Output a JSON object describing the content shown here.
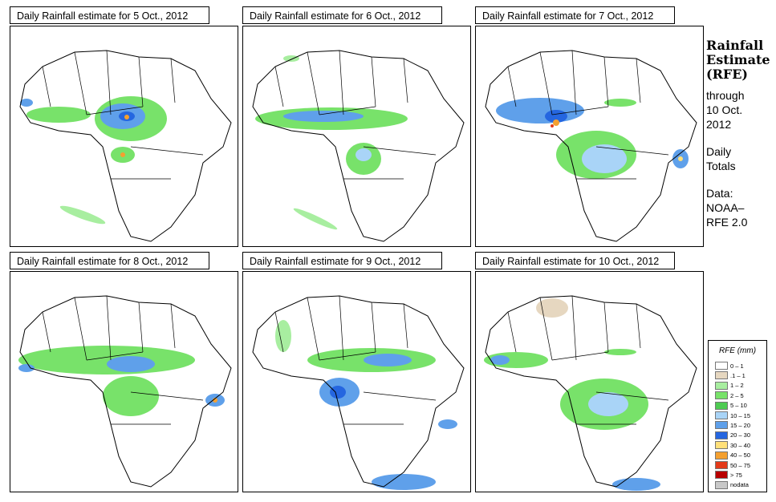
{
  "panels": [
    {
      "title": "Daily Rainfall estimate for  5 Oct., 2012"
    },
    {
      "title": "Daily Rainfall estimate for  6 Oct., 2012"
    },
    {
      "title": "Daily Rainfall estimate for  7 Oct., 2012"
    },
    {
      "title": "Daily Rainfall estimate for  8 Oct., 2012"
    },
    {
      "title": "Daily Rainfall estimate for  9 Oct., 2012"
    },
    {
      "title": "Daily Rainfall estimate for  10 Oct., 2012"
    }
  ],
  "side": {
    "heading1": "Rainfall",
    "heading2": "Estimate",
    "heading3": "(RFE)",
    "through": "through",
    "date1": "10 Oct.",
    "date2": "2012",
    "daily1": "Daily",
    "daily2": "Totals",
    "data1": "Data:",
    "data2": "NOAA–",
    "data3": "RFE 2.0"
  },
  "legend": {
    "title": "RFE (mm)",
    "items": [
      {
        "label": "0 – 1",
        "color": "#ffffff"
      },
      {
        "label": ".1 – 1",
        "color": "#e6d7c0"
      },
      {
        "label": "1 – 2",
        "color": "#a8eea0"
      },
      {
        "label": "2 – 5",
        "color": "#78e26a"
      },
      {
        "label": "5 – 10",
        "color": "#4ecb52"
      },
      {
        "label": "10 – 15",
        "color": "#a9d4f7"
      },
      {
        "label": "15 – 20",
        "color": "#5fa0ea"
      },
      {
        "label": "20 – 30",
        "color": "#2566e0"
      },
      {
        "label": "30 – 40",
        "color": "#ffe07a"
      },
      {
        "label": "40 – 50",
        "color": "#f4a030"
      },
      {
        "label": "50 – 75",
        "color": "#e33a1a"
      },
      {
        "label": "> 75",
        "color": "#b80000"
      },
      {
        "label": "nodata",
        "color": "#c8c8c8"
      }
    ]
  }
}
